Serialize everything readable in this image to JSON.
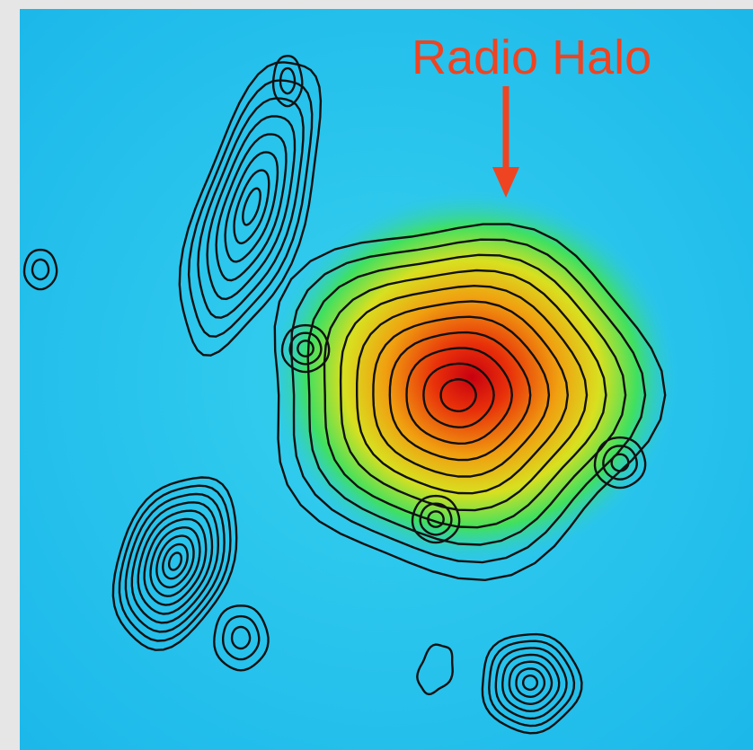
{
  "annotation": {
    "label": "Radio Halo"
  }
}
